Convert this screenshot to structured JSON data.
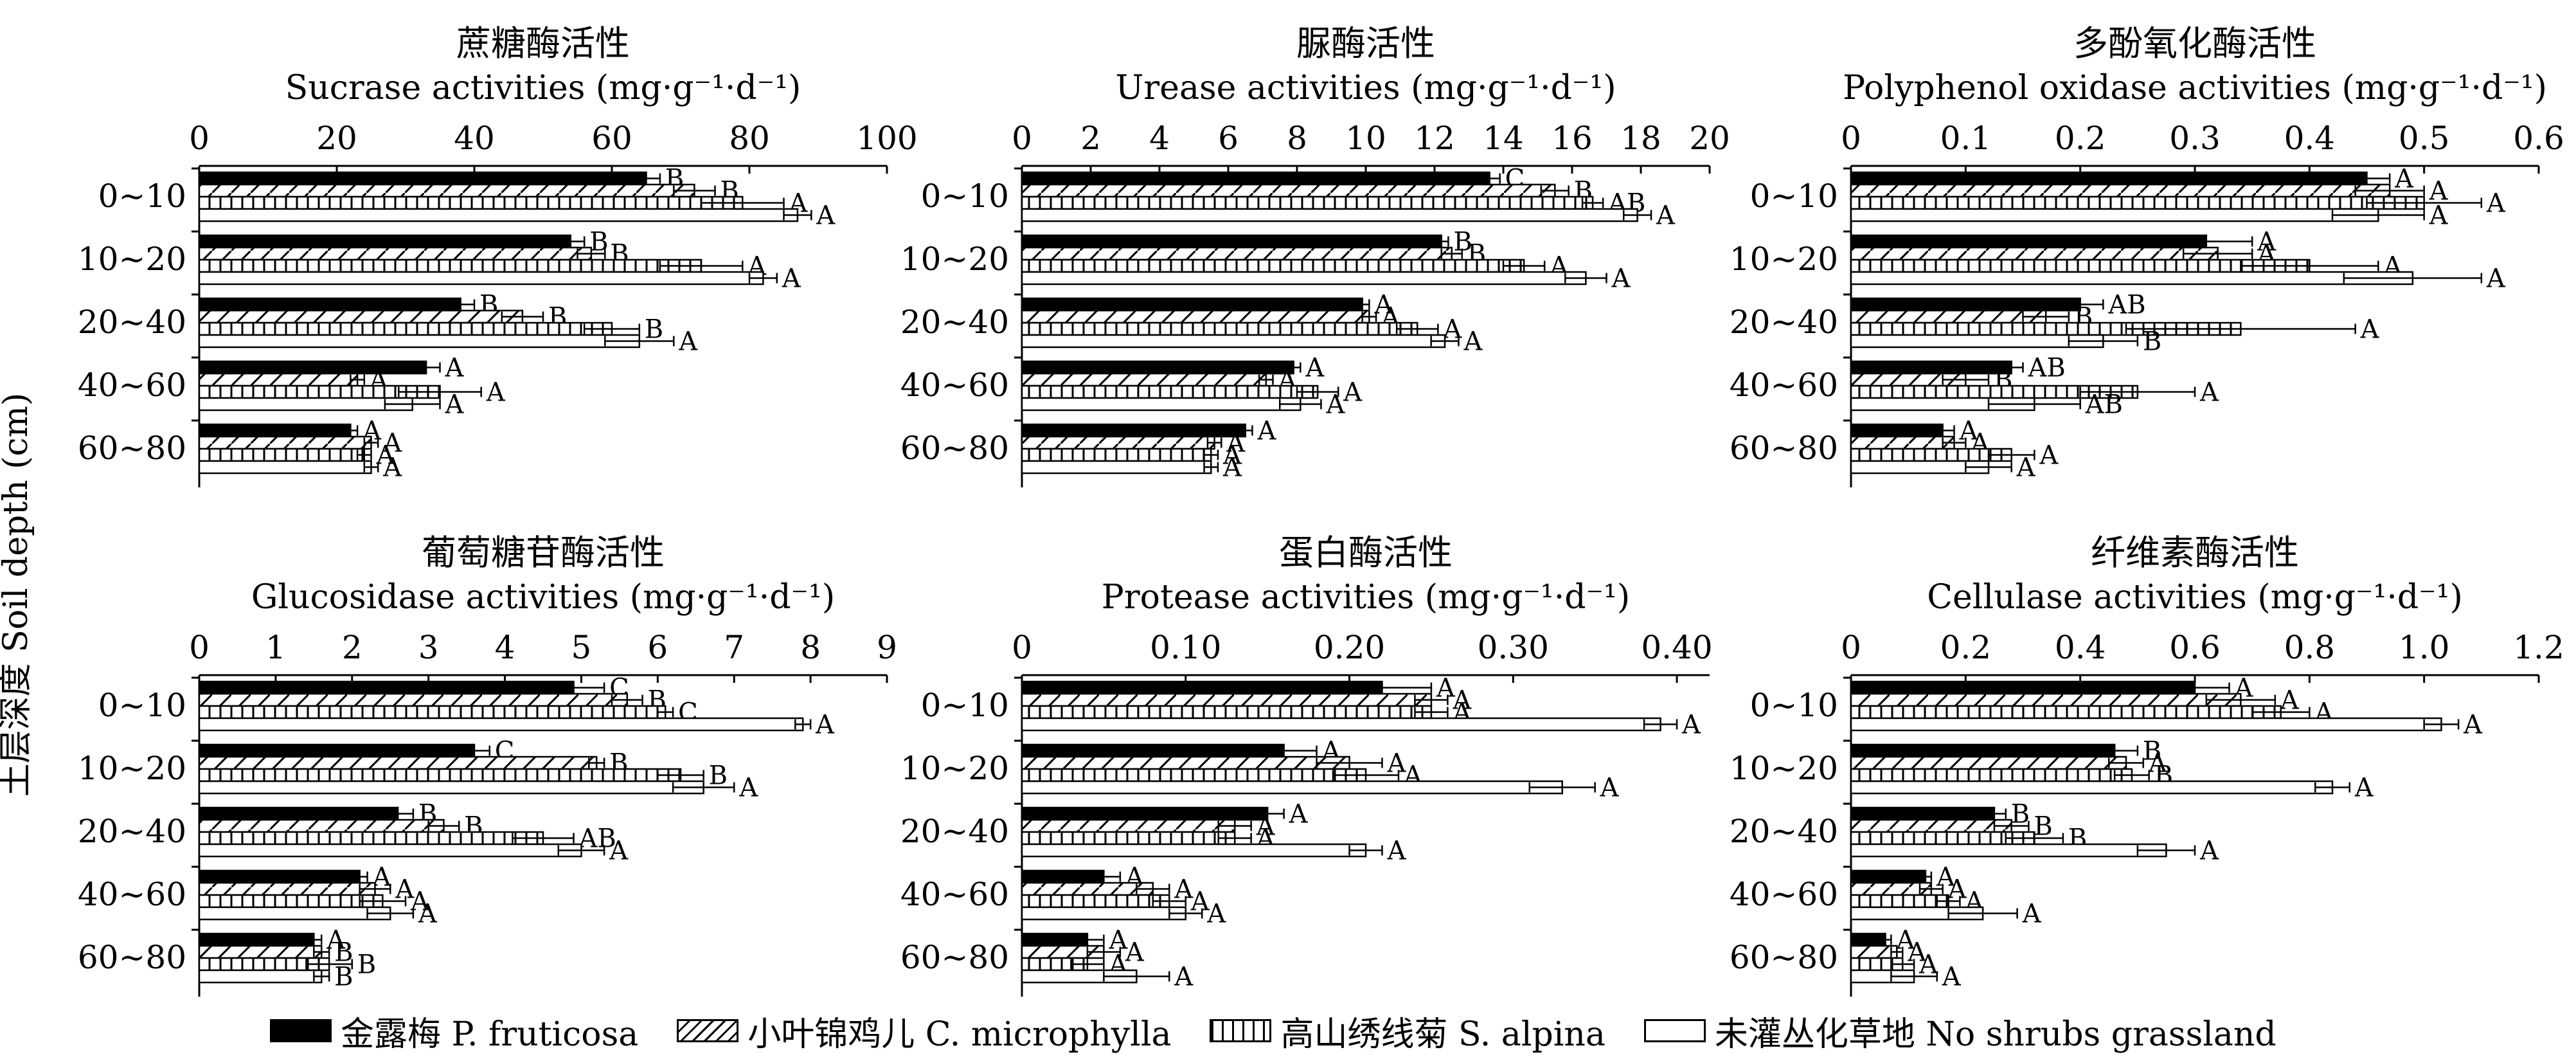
{
  "ylabel": "土层深度 Soil depth (cm)",
  "legend": [
    {
      "label": "金露梅 P. fruticosa",
      "pattern": "solid"
    },
    {
      "label": "小叶锦鸡儿 C. microphylla",
      "pattern": "diagonal"
    },
    {
      "label": "高山绣线菊 S. alpina",
      "pattern": "vertical"
    },
    {
      "label": "未灌丛化草地 No shrubs grassland",
      "pattern": "blank"
    }
  ],
  "colors": {
    "bar_fill": "#000000",
    "background": "#ffffff",
    "line": "#000000"
  },
  "chart_data": [
    {
      "type": "bar",
      "title_cn": "蔗糖酶活性",
      "title": "Sucrase activities (mg·g⁻¹·d⁻¹)",
      "categories": [
        "0~10",
        "10~20",
        "20~40",
        "40~60",
        "60~80"
      ],
      "xlim": [
        0,
        100
      ],
      "xticks": [
        "0",
        "20",
        "40",
        "60",
        "80",
        "100"
      ],
      "series": [
        {
          "name": "金露梅 P. fruticosa",
          "values": [
            65,
            54,
            38,
            33,
            22
          ],
          "err": [
            2,
            2,
            2,
            2,
            1
          ],
          "letters": [
            "B",
            "B",
            "B",
            "A",
            "A"
          ]
        },
        {
          "name": "小叶锦鸡儿 C. microphylla",
          "values": [
            72,
            57,
            47,
            23,
            25
          ],
          "err": [
            3,
            2,
            3,
            1,
            1
          ],
          "letters": [
            "B",
            "B",
            "B",
            "A",
            "A"
          ]
        },
        {
          "name": "高山绣线菊 S. alpina",
          "values": [
            79,
            73,
            60,
            35,
            24
          ],
          "err": [
            6,
            6,
            4,
            6,
            1
          ],
          "letters": [
            "A",
            "A",
            "B",
            "A",
            "A"
          ]
        },
        {
          "name": "未灌丛化草地 No shrubs grassland",
          "values": [
            87,
            82,
            64,
            31,
            25
          ],
          "err": [
            2,
            2,
            5,
            4,
            1
          ],
          "letters": [
            "A",
            "A",
            "A",
            "A",
            "A"
          ]
        }
      ]
    },
    {
      "type": "bar",
      "title_cn": "脲酶活性",
      "title": "Urease activities (mg·g⁻¹·d⁻¹)",
      "categories": [
        "0~10",
        "10~20",
        "20~40",
        "40~60",
        "60~80"
      ],
      "xlim": [
        0,
        20
      ],
      "xticks": [
        "0",
        "2",
        "4",
        "6",
        "8",
        "10",
        "12",
        "14",
        "16",
        "18",
        "20"
      ],
      "series": [
        {
          "name": "金露梅 P. fruticosa",
          "values": [
            13.6,
            12.2,
            9.9,
            7.9,
            6.5
          ],
          "err": [
            0.3,
            0.2,
            0.2,
            0.2,
            0.2
          ],
          "letters": [
            "C",
            "B",
            "A",
            "A",
            "A"
          ]
        },
        {
          "name": "小叶锦鸡儿 C. microphylla",
          "values": [
            15.5,
            12.5,
            10.1,
            7.1,
            5.6
          ],
          "err": [
            0.4,
            0.3,
            0.2,
            0.2,
            0.2
          ],
          "letters": [
            "B",
            "B",
            "A",
            "A",
            "A"
          ]
        },
        {
          "name": "高山绣线菊 S. alpina",
          "values": [
            16.6,
            14.6,
            11.5,
            8.6,
            5.5
          ],
          "err": [
            0.3,
            0.6,
            0.6,
            0.6,
            0.2
          ],
          "letters": [
            "AB",
            "A",
            "A",
            "A",
            "A"
          ]
        },
        {
          "name": "未灌丛化草地 No shrubs grassland",
          "values": [
            17.9,
            16.4,
            12.3,
            8.1,
            5.5
          ],
          "err": [
            0.4,
            0.6,
            0.4,
            0.6,
            0.2
          ],
          "letters": [
            "A",
            "A",
            "A",
            "A",
            "A"
          ]
        }
      ]
    },
    {
      "type": "bar",
      "title_cn": "多酚氧化酶活性",
      "title": "Polyphenol oxidase activities (mg·g⁻¹·d⁻¹)",
      "categories": [
        "0~10",
        "10~20",
        "20~40",
        "40~60",
        "60~80"
      ],
      "xlim": [
        0,
        0.6
      ],
      "xticks": [
        "0",
        "0.1",
        "0.2",
        "0.3",
        "0.4",
        "0.5",
        "0.6"
      ],
      "series": [
        {
          "name": "金露梅 P. fruticosa",
          "values": [
            0.45,
            0.31,
            0.2,
            0.14,
            0.08
          ],
          "err": [
            0.02,
            0.04,
            0.02,
            0.01,
            0.01
          ],
          "letters": [
            "A",
            "A",
            "AB",
            "AB",
            "A"
          ]
        },
        {
          "name": "小叶锦鸡儿 C. microphylla",
          "values": [
            0.47,
            0.32,
            0.17,
            0.1,
            0.09
          ],
          "err": [
            0.03,
            0.03,
            0.02,
            0.02,
            0.01
          ],
          "letters": [
            "A",
            "A",
            "B",
            "B",
            "A"
          ]
        },
        {
          "name": "高山绣线菊 S. alpina",
          "values": [
            0.5,
            0.4,
            0.34,
            0.25,
            0.14
          ],
          "err": [
            0.05,
            0.06,
            0.1,
            0.05,
            0.02
          ],
          "letters": [
            "A",
            "A",
            "A",
            "A",
            "A"
          ]
        },
        {
          "name": "未灌丛化草地 No shrubs grassland",
          "values": [
            0.46,
            0.49,
            0.22,
            0.16,
            0.12
          ],
          "err": [
            0.04,
            0.06,
            0.03,
            0.04,
            0.02
          ],
          "letters": [
            "A",
            "A",
            "B",
            "AB",
            "A"
          ]
        }
      ]
    },
    {
      "type": "bar",
      "title_cn": "葡萄糖苷酶活性",
      "title": "Glucosidase activities (mg·g⁻¹·d⁻¹)",
      "categories": [
        "0~10",
        "10~20",
        "20~40",
        "40~60",
        "60~80"
      ],
      "xlim": [
        0,
        9
      ],
      "xticks": [
        "0",
        "1",
        "2",
        "3",
        "4",
        "5",
        "6",
        "7",
        "8",
        "9"
      ],
      "series": [
        {
          "name": "金露梅 P. fruticosa",
          "values": [
            4.9,
            3.6,
            2.6,
            2.1,
            1.5
          ],
          "err": [
            0.4,
            0.2,
            0.2,
            0.1,
            0.1
          ],
          "letters": [
            "C",
            "C",
            "B",
            "A",
            "A"
          ]
        },
        {
          "name": "小叶锦鸡儿 C. microphylla",
          "values": [
            5.6,
            5.2,
            3.2,
            2.3,
            1.6
          ],
          "err": [
            0.2,
            0.1,
            0.2,
            0.2,
            0.1
          ],
          "letters": [
            "B",
            "B",
            "B",
            "A",
            "B"
          ]
        },
        {
          "name": "高山绣线菊 S. alpina",
          "values": [
            6.1,
            6.3,
            4.5,
            2.4,
            1.7
          ],
          "err": [
            0.1,
            0.3,
            0.4,
            0.3,
            0.3
          ],
          "letters": [
            "C",
            "B",
            "AB",
            "A",
            "B"
          ]
        },
        {
          "name": "未灌丛化草地 No shrubs grassland",
          "values": [
            7.9,
            6.6,
            5.0,
            2.5,
            1.6
          ],
          "err": [
            0.1,
            0.4,
            0.3,
            0.3,
            0.1
          ],
          "letters": [
            "A",
            "A",
            "A",
            "A",
            "B"
          ]
        }
      ]
    },
    {
      "type": "bar",
      "title_cn": "蛋白酶活性",
      "title": "Protease activities (mg·g⁻¹·d⁻¹)",
      "categories": [
        "0~10",
        "10~20",
        "20~40",
        "40~60",
        "60~80"
      ],
      "xlim": [
        0,
        0.42
      ],
      "xticks": [
        "0",
        "0.10",
        "0.20",
        "0.30",
        "0.40"
      ],
      "series": [
        {
          "name": "金露梅 P. fruticosa",
          "values": [
            0.22,
            0.16,
            0.15,
            0.05,
            0.04
          ],
          "err": [
            0.03,
            0.02,
            0.01,
            0.01,
            0.01
          ],
          "letters": [
            "A",
            "A",
            "A",
            "A",
            "A"
          ]
        },
        {
          "name": "小叶锦鸡儿 C. microphylla",
          "values": [
            0.25,
            0.2,
            0.13,
            0.08,
            0.05
          ],
          "err": [
            0.01,
            0.02,
            0.01,
            0.01,
            0.01
          ],
          "letters": [
            "A",
            "A",
            "A",
            "A",
            "A"
          ]
        },
        {
          "name": "高山绣线菊 S. alpina",
          "values": [
            0.25,
            0.21,
            0.13,
            0.09,
            0.04
          ],
          "err": [
            0.01,
            0.02,
            0.01,
            0.01,
            0.01
          ],
          "letters": [
            "A",
            "A",
            "A",
            "A",
            "A"
          ]
        },
        {
          "name": "未灌丛化草地 No shrubs grassland",
          "values": [
            0.39,
            0.33,
            0.21,
            0.1,
            0.07
          ],
          "err": [
            0.01,
            0.02,
            0.01,
            0.01,
            0.02
          ],
          "letters": [
            "A",
            "A",
            "A",
            "A",
            "A"
          ]
        }
      ]
    },
    {
      "type": "bar",
      "title_cn": "纤维素酶活性",
      "title": "Cellulase activities (mg·g⁻¹·d⁻¹)",
      "categories": [
        "0~10",
        "10~20",
        "20~40",
        "40~60",
        "60~80"
      ],
      "xlim": [
        0,
        1.2
      ],
      "xticks": [
        "0",
        "0.2",
        "0.4",
        "0.6",
        "0.8",
        "1.0",
        "1.2"
      ],
      "series": [
        {
          "name": "金露梅 P. fruticosa",
          "values": [
            0.6,
            0.46,
            0.25,
            0.13,
            0.06
          ],
          "err": [
            0.06,
            0.04,
            0.02,
            0.01,
            0.01
          ],
          "letters": [
            "A",
            "B",
            "B",
            "A",
            "A"
          ]
        },
        {
          "name": "小叶锦鸡儿 C. microphylla",
          "values": [
            0.68,
            0.48,
            0.28,
            0.14,
            0.08
          ],
          "err": [
            0.06,
            0.03,
            0.03,
            0.02,
            0.01
          ],
          "letters": [
            "A",
            "A",
            "B",
            "A",
            "A"
          ]
        },
        {
          "name": "高山绣线菊 S. alpina",
          "values": [
            0.75,
            0.49,
            0.32,
            0.17,
            0.09
          ],
          "err": [
            0.05,
            0.03,
            0.05,
            0.02,
            0.02
          ],
          "letters": [
            "A",
            "B",
            "B",
            "A",
            "A"
          ]
        },
        {
          "name": "未灌丛化草地 No shrubs grassland",
          "values": [
            1.03,
            0.84,
            0.55,
            0.23,
            0.11
          ],
          "err": [
            0.03,
            0.03,
            0.05,
            0.06,
            0.04
          ],
          "letters": [
            "A",
            "A",
            "A",
            "A",
            "A"
          ]
        }
      ]
    }
  ]
}
